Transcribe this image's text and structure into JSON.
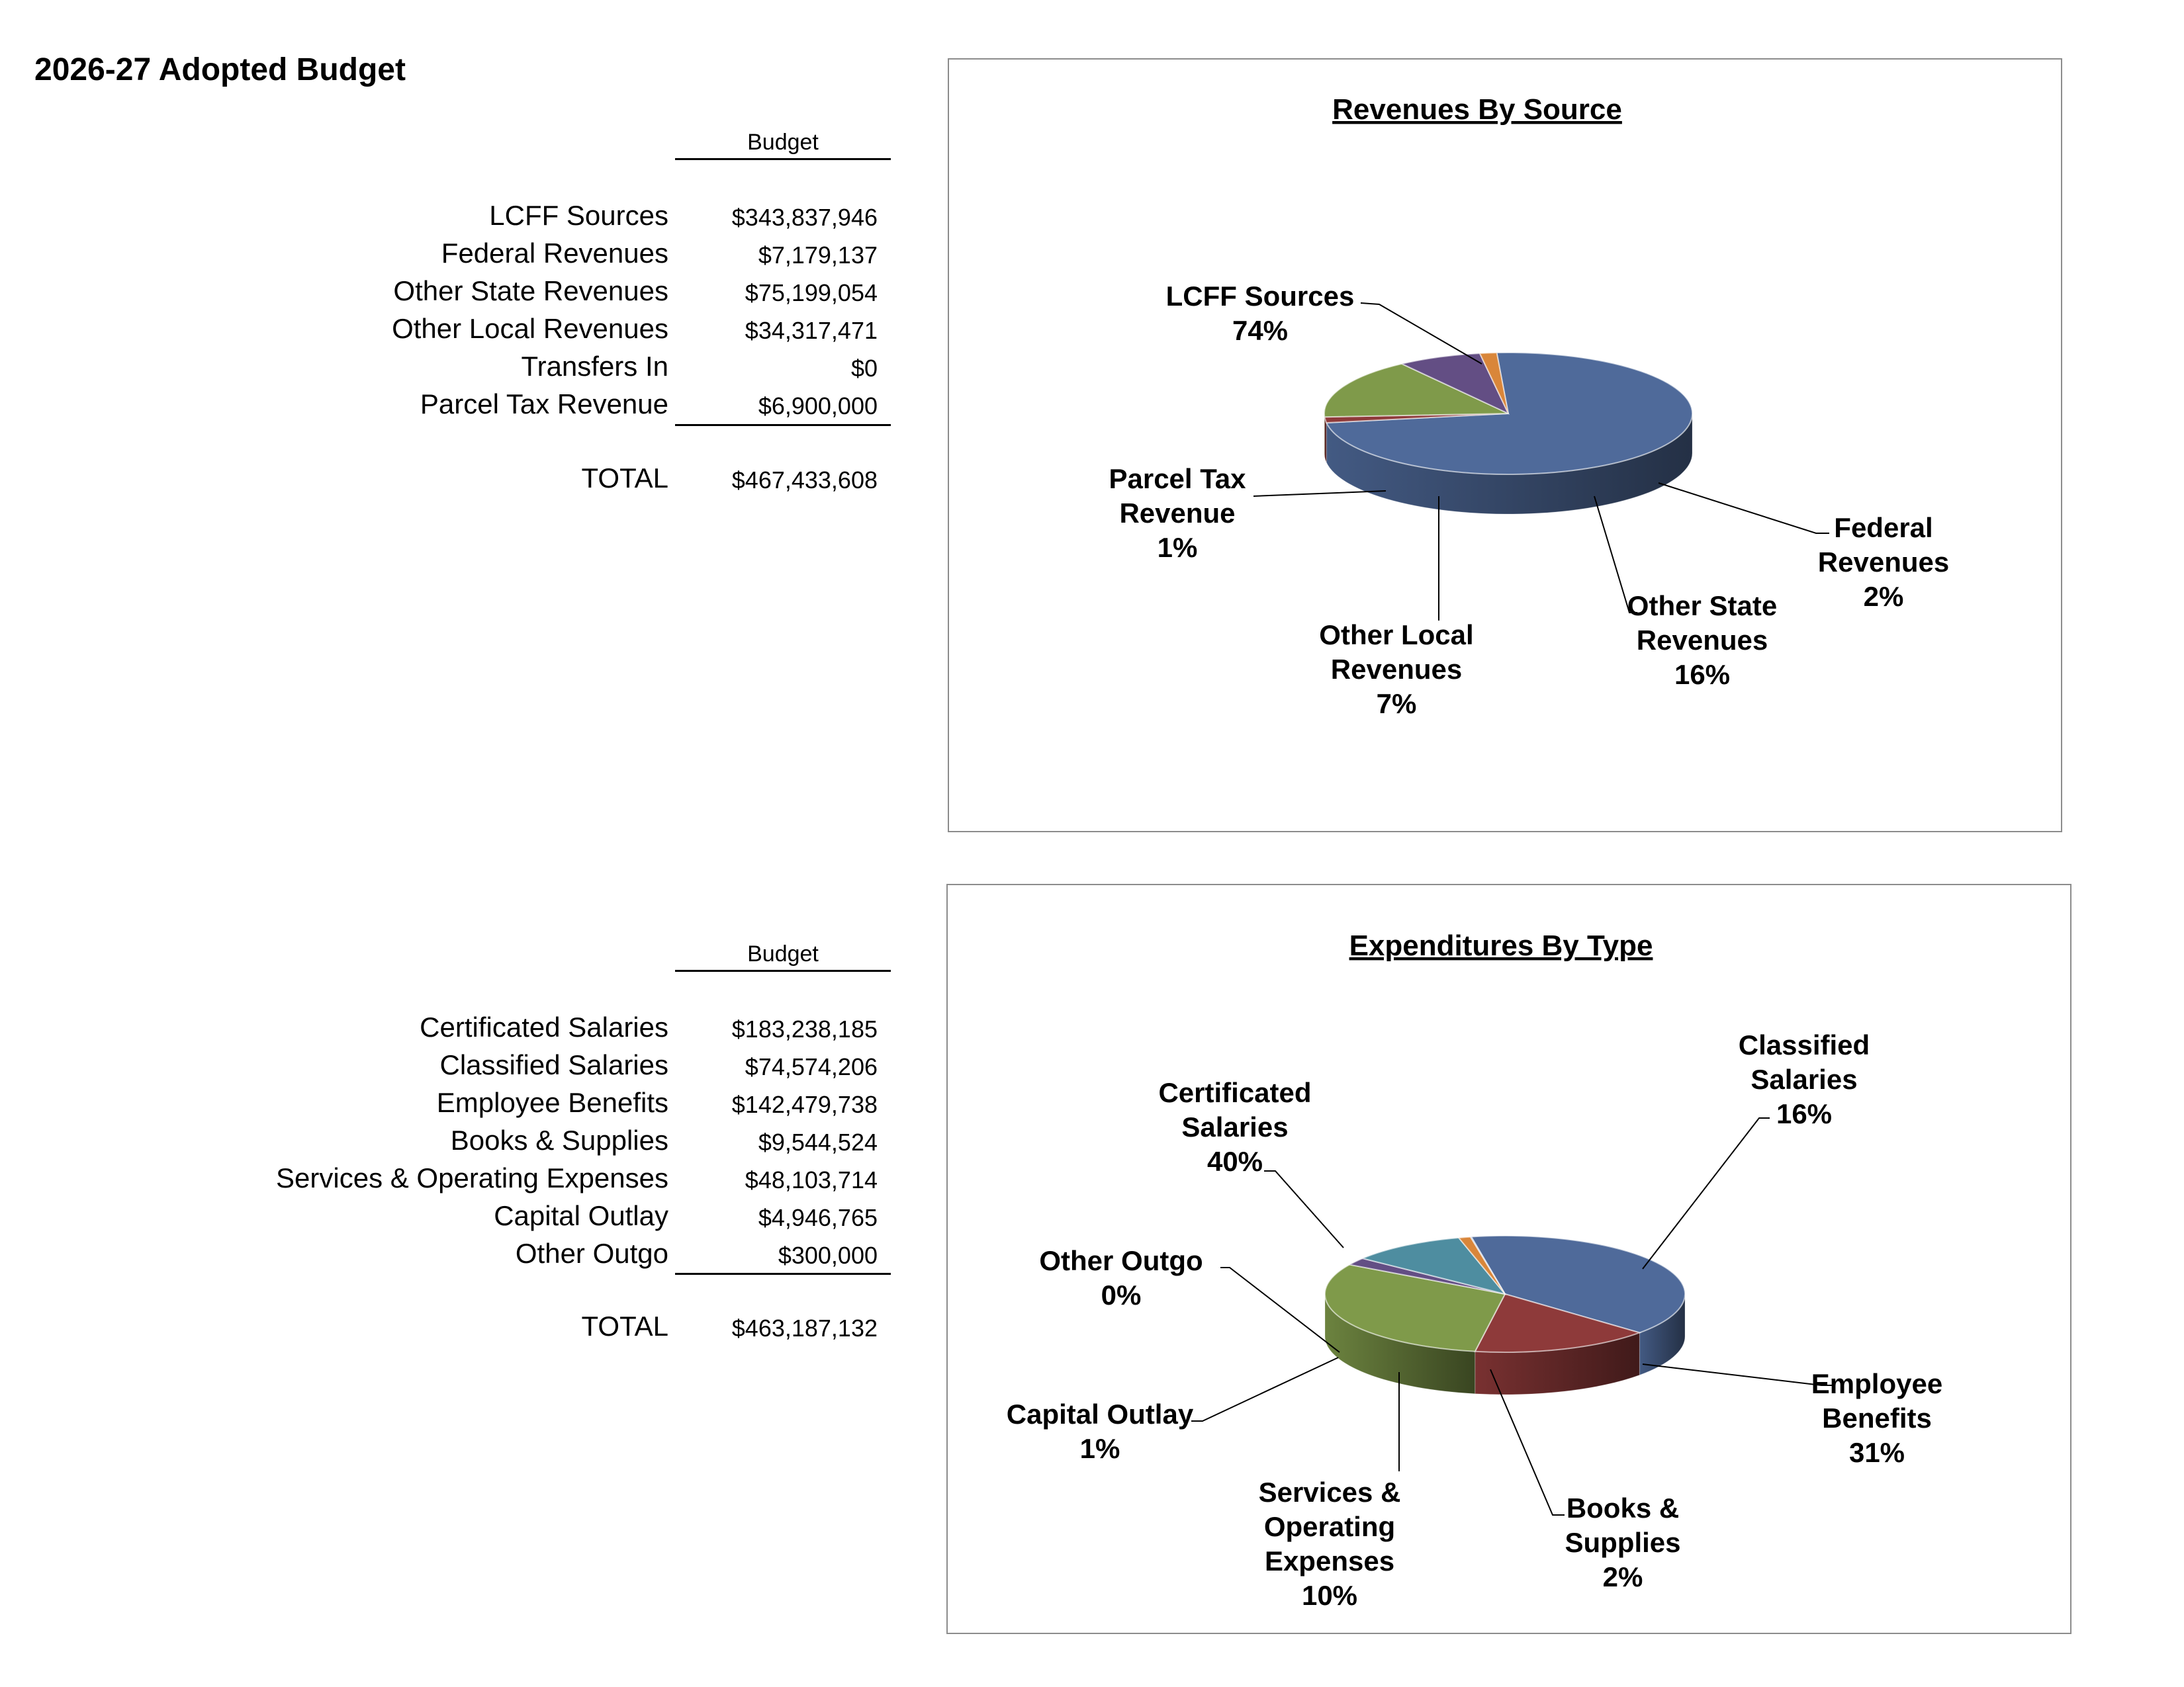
{
  "page": {
    "title": "2026-27 Adopted Budget"
  },
  "revenues": {
    "column_header": "Budget",
    "rows": [
      {
        "label": "LCFF Sources",
        "value": "$343,837,946"
      },
      {
        "label": "Federal Revenues",
        "value": "$7,179,137"
      },
      {
        "label": "Other State Revenues",
        "value": "$75,199,054"
      },
      {
        "label": "Other Local Revenues",
        "value": "$34,317,471"
      },
      {
        "label": "Transfers In",
        "value": "$0"
      },
      {
        "label": "Parcel Tax Revenue",
        "value": "$6,900,000"
      }
    ],
    "total_label": "TOTAL",
    "total_value": "$467,433,608"
  },
  "expenditures": {
    "column_header": "Budget",
    "rows": [
      {
        "label": "Certificated Salaries",
        "value": "$183,238,185"
      },
      {
        "label": "Classified Salaries",
        "value": "$74,574,206"
      },
      {
        "label": "Employee Benefits",
        "value": "$142,479,738"
      },
      {
        "label": "Books & Supplies",
        "value": "$9,544,524"
      },
      {
        "label": "Services & Operating Expenses",
        "value": "$48,103,714"
      },
      {
        "label": "Capital Outlay",
        "value": "$4,946,765"
      },
      {
        "label": "Other Outgo",
        "value": "$300,000"
      }
    ],
    "total_label": "TOTAL",
    "total_value": "$463,187,132"
  },
  "chart_data": [
    {
      "type": "pie",
      "title": "Revenues By Source",
      "style": "3d-pie",
      "slices": [
        {
          "label": "LCFF Sources",
          "value": 343837946,
          "percent_label": "74%",
          "color": "#4F6A9A"
        },
        {
          "label": "Federal Revenues",
          "value": 7179137,
          "percent_label": "2%",
          "color": "#8E3A3A"
        },
        {
          "label": "Other State Revenues",
          "value": 75199054,
          "percent_label": "16%",
          "color": "#7F9A4A"
        },
        {
          "label": "Other Local Revenues",
          "value": 34317471,
          "percent_label": "7%",
          "color": "#634E84"
        },
        {
          "label": "Transfers In",
          "value": 0,
          "percent_label": "",
          "color": "#4A9AB0"
        },
        {
          "label": "Parcel Tax Revenue",
          "value": 6900000,
          "percent_label": "1%",
          "color": "#D9863A"
        }
      ]
    },
    {
      "type": "pie",
      "title": "Expenditures By Type",
      "style": "3d-pie",
      "slices": [
        {
          "label": "Certificated Salaries",
          "value": 183238185,
          "percent_label": "40%",
          "color": "#4F6A9A"
        },
        {
          "label": "Classified Salaries",
          "value": 74574206,
          "percent_label": "16%",
          "color": "#8E3A3A"
        },
        {
          "label": "Employee Benefits",
          "value": 142479738,
          "percent_label": "31%",
          "color": "#7F9A4A"
        },
        {
          "label": "Books & Supplies",
          "value": 9544524,
          "percent_label": "2%",
          "color": "#634E84"
        },
        {
          "label": "Services & Operating Expenses",
          "value": 48103714,
          "percent_label": "10%",
          "color": "#4E8DA0"
        },
        {
          "label": "Capital Outlay",
          "value": 4946765,
          "percent_label": "1%",
          "color": "#D9863A"
        },
        {
          "label": "Other Outgo",
          "value": 300000,
          "percent_label": "0%",
          "color": "#8FA6CF"
        }
      ]
    }
  ]
}
